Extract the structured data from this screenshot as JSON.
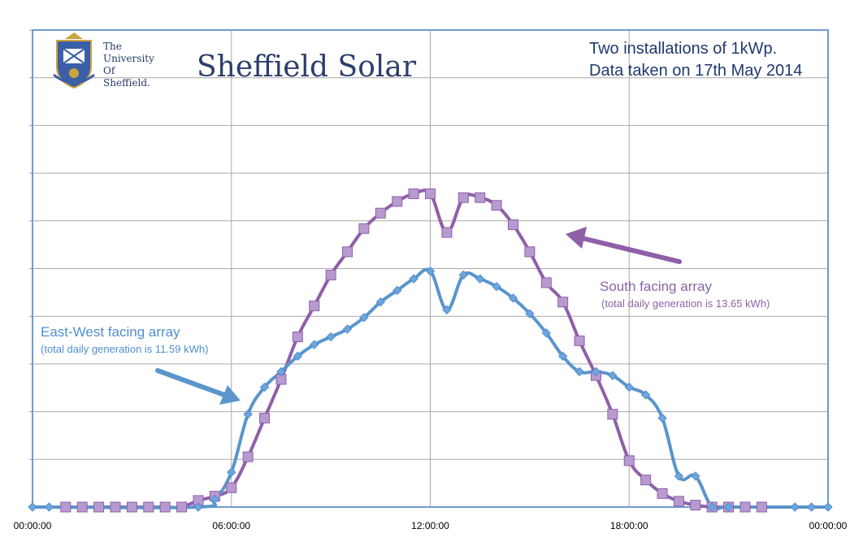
{
  "chart_data": {
    "type": "line",
    "title": "Sheffield Solar",
    "subtitle_lines": [
      "Two installations of 1kWp.",
      "Data taken on 17th May 2014"
    ],
    "x_unit": "hours",
    "xlim": [
      0,
      24
    ],
    "ylim": [
      0,
      1
    ],
    "y_gridlines": 9,
    "x_tick_labels": [
      "00:00:00",
      "06:00:00",
      "12:00:00",
      "18:00:00",
      "00:00:00"
    ],
    "x_tick_values": [
      0,
      6,
      12,
      18,
      24
    ],
    "series": [
      {
        "name": "South facing array",
        "note": "(total daily generation is 13.65 kWh)",
        "color": "#8f5fa8",
        "marker": "square",
        "x": [
          1,
          1.5,
          2,
          2.5,
          3,
          3.5,
          4,
          4.5,
          5,
          5.5,
          6,
          6.5,
          7,
          7.5,
          8,
          8.5,
          9,
          9.5,
          10,
          10.5,
          11,
          11.5,
          12,
          12.5,
          13,
          13.5,
          14,
          14.5,
          15,
          15.5,
          16,
          16.5,
          17,
          17.5,
          18,
          18.5,
          19,
          19.5,
          20,
          20.5,
          21,
          21.5,
          22
        ],
        "y": [
          0,
          0,
          0,
          0,
          0,
          0,
          0,
          0,
          0.017,
          0.028,
          0.05,
          0.13,
          0.23,
          0.33,
          0.44,
          0.52,
          0.6,
          0.66,
          0.72,
          0.76,
          0.79,
          0.81,
          0.81,
          0.71,
          0.8,
          0.8,
          0.78,
          0.73,
          0.66,
          0.58,
          0.53,
          0.43,
          0.34,
          0.24,
          0.12,
          0.07,
          0.035,
          0.015,
          0.005,
          0,
          0,
          0,
          0
        ]
      },
      {
        "name": "East-West facing array",
        "note": "(total daily generation is 11.59 kWh)",
        "color": "#5a95cc",
        "marker": "diamond",
        "x": [
          0,
          0.5,
          5,
          5.5,
          6,
          6.5,
          7,
          7.5,
          8,
          8.5,
          9,
          9.5,
          10,
          10.5,
          11,
          11.5,
          12,
          12.5,
          13,
          13.5,
          14,
          14.5,
          15,
          15.5,
          16,
          16.5,
          17,
          17.5,
          18,
          18.5,
          19,
          19.5,
          20,
          20.5,
          21,
          23,
          23.5,
          24
        ],
        "y": [
          0,
          0,
          0,
          0.02,
          0.09,
          0.24,
          0.31,
          0.35,
          0.39,
          0.42,
          0.44,
          0.46,
          0.49,
          0.53,
          0.56,
          0.59,
          0.61,
          0.51,
          0.6,
          0.59,
          0.57,
          0.54,
          0.5,
          0.45,
          0.39,
          0.35,
          0.35,
          0.34,
          0.31,
          0.29,
          0.23,
          0.08,
          0.08,
          0,
          0,
          0,
          0,
          0
        ]
      }
    ]
  },
  "logo": {
    "lines": [
      "The",
      "University",
      "Of",
      "Sheffield."
    ]
  },
  "annotations": {
    "south_label": "South facing array",
    "south_note": "(total daily generation is 13.65 kWh)",
    "ew_label": "East-West facing array",
    "ew_note": "(total daily generation is 11.59 kWh)"
  }
}
